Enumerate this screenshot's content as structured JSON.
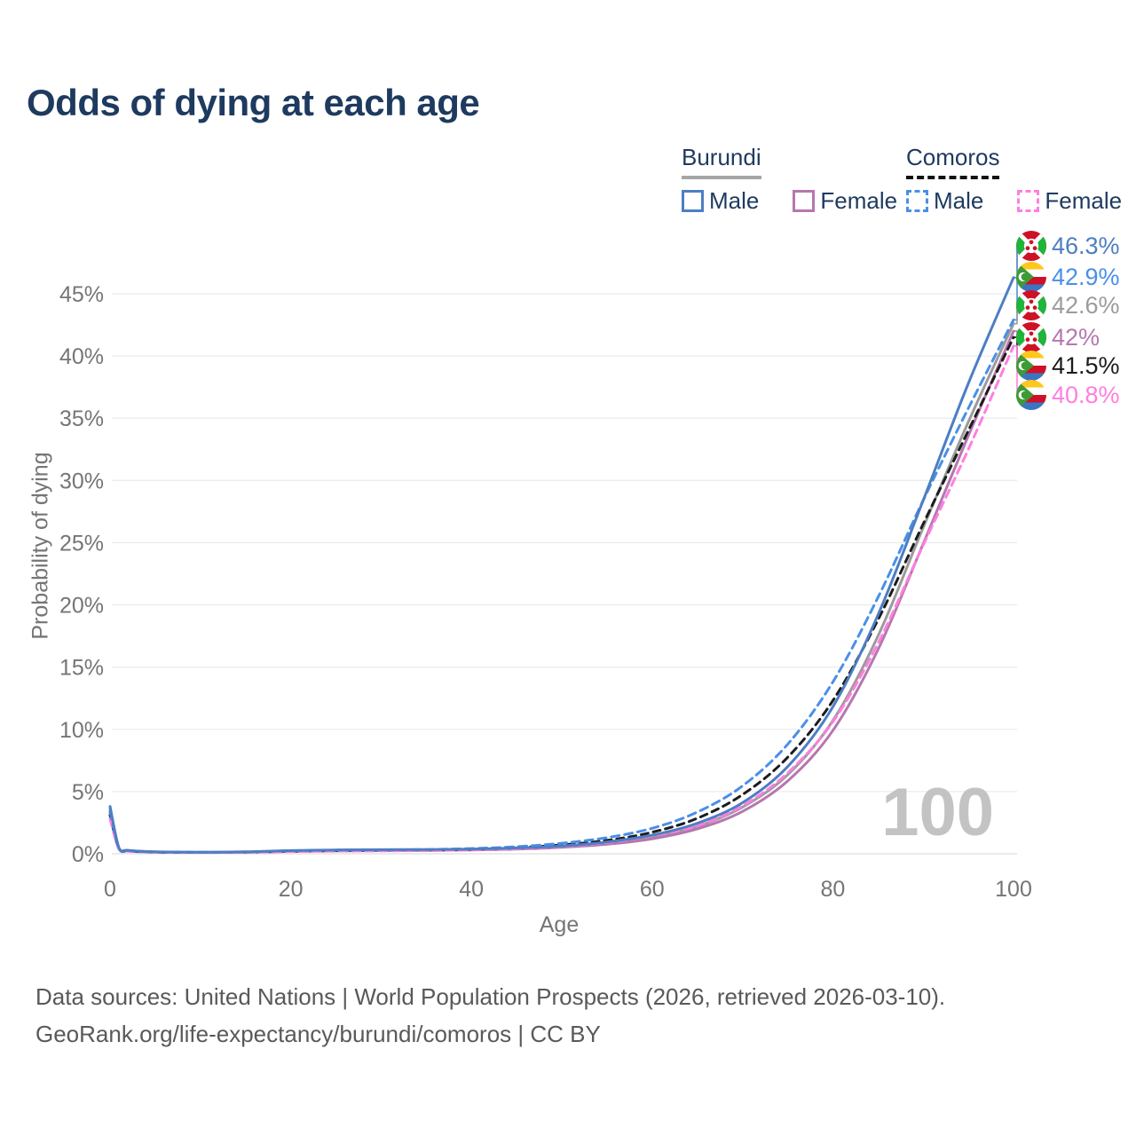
{
  "title": "Odds of dying at each age",
  "legend": {
    "groups": [
      {
        "label": "Burundi",
        "line_style": "solid",
        "items": [
          {
            "label": "Male",
            "color": "#4d7ec3"
          },
          {
            "label": "Female",
            "color": "#b577af"
          }
        ]
      },
      {
        "label": "Comoros",
        "line_style": "dashed",
        "items": [
          {
            "label": "Male",
            "color": "#4a8fe8"
          },
          {
            "label": "Female",
            "color": "#ff7ee0"
          }
        ]
      }
    ]
  },
  "end_labels": [
    {
      "value": "46.3%",
      "series": "burundi-male",
      "country": "burundi"
    },
    {
      "value": "42.9%",
      "series": "comoros-male",
      "country": "comoros"
    },
    {
      "value": "42.6%",
      "series": "burundi-both",
      "country": "burundi"
    },
    {
      "value": "42%",
      "series": "burundi-female",
      "country": "burundi"
    },
    {
      "value": "41.5%",
      "series": "comoros-both",
      "country": "comoros"
    },
    {
      "value": "40.8%",
      "series": "comoros-female",
      "country": "comoros"
    }
  ],
  "watermark": "100",
  "axes": {
    "x_label": "Age",
    "y_label": "Probability of dying",
    "x_ticks": [
      0,
      20,
      40,
      60,
      80,
      100
    ],
    "y_ticks": [
      {
        "v": 0,
        "label": "0%"
      },
      {
        "v": 5,
        "label": "5%"
      },
      {
        "v": 10,
        "label": "10%"
      },
      {
        "v": 15,
        "label": "15%"
      },
      {
        "v": 20,
        "label": "20%"
      },
      {
        "v": 25,
        "label": "25%"
      },
      {
        "v": 30,
        "label": "30%"
      },
      {
        "v": 35,
        "label": "35%"
      },
      {
        "v": 40,
        "label": "40%"
      },
      {
        "v": 45,
        "label": "45%"
      }
    ]
  },
  "footer": {
    "line1": "Data sources: United Nations | World Population Prospects (2026, retrieved 2026-03-10).",
    "line2": "GeoRank.org/life-expectancy/burundi/comoros | CC BY"
  },
  "colors": {
    "title": "#1e3a5f",
    "axis_text": "#757575",
    "gridline": "#ececec",
    "baseline": "#dedede",
    "watermark": "#c3c3c3",
    "footer": "#595959"
  },
  "chart_data": {
    "type": "line",
    "title": "Odds of dying at each age",
    "xlabel": "Age",
    "ylabel": "Probability of dying",
    "xlim": [
      0,
      100
    ],
    "ylim_pct": [
      0,
      48
    ],
    "grid": "horizontal-only",
    "legend_position": "top-right",
    "x_ages": [
      0,
      1,
      2,
      5,
      10,
      15,
      20,
      25,
      30,
      35,
      40,
      45,
      50,
      55,
      60,
      65,
      70,
      75,
      80,
      85,
      90,
      95,
      100
    ],
    "series": [
      {
        "id": "burundi-male",
        "name": "Burundi Male",
        "color": "#4d7ec3",
        "dash": null,
        "end_value_pct": 46.3,
        "values_pct": [
          3.8,
          0.45,
          0.28,
          0.16,
          0.13,
          0.16,
          0.26,
          0.31,
          0.33,
          0.34,
          0.38,
          0.47,
          0.63,
          0.95,
          1.5,
          2.45,
          4.1,
          7.0,
          11.8,
          19.2,
          28.4,
          37.8,
          46.3
        ]
      },
      {
        "id": "comoros-male",
        "name": "Comoros Male",
        "color": "#4a8fe8",
        "dash": "9 6",
        "end_value_pct": 42.9,
        "values_pct": [
          3.4,
          0.4,
          0.25,
          0.14,
          0.12,
          0.15,
          0.24,
          0.29,
          0.31,
          0.34,
          0.42,
          0.57,
          0.85,
          1.3,
          2.05,
          3.35,
          5.45,
          8.8,
          13.8,
          20.6,
          28.4,
          35.8,
          42.9
        ]
      },
      {
        "id": "burundi-both",
        "name": "Burundi Both sexes",
        "color": "#9b9b9b",
        "dash": null,
        "end_value_pct": 42.6,
        "values_pct": [
          3.6,
          0.43,
          0.26,
          0.15,
          0.12,
          0.14,
          0.22,
          0.27,
          0.29,
          0.31,
          0.34,
          0.43,
          0.57,
          0.85,
          1.35,
          2.2,
          3.75,
          6.35,
          10.7,
          17.5,
          26.2,
          34.7,
          42.6
        ]
      },
      {
        "id": "burundi-female",
        "name": "Burundi Female",
        "color": "#b577af",
        "dash": null,
        "end_value_pct": 42.0,
        "values_pct": [
          3.3,
          0.4,
          0.24,
          0.14,
          0.11,
          0.13,
          0.19,
          0.23,
          0.25,
          0.27,
          0.31,
          0.38,
          0.52,
          0.76,
          1.2,
          2.0,
          3.4,
          5.85,
          9.9,
          16.4,
          24.9,
          33.6,
          42.0
        ]
      },
      {
        "id": "comoros-both",
        "name": "Comoros Both sexes",
        "color": "#1c1c1c",
        "dash": "8 6",
        "end_value_pct": 41.5,
        "values_pct": [
          3.1,
          0.37,
          0.22,
          0.13,
          0.11,
          0.13,
          0.2,
          0.25,
          0.27,
          0.3,
          0.36,
          0.49,
          0.71,
          1.08,
          1.73,
          2.85,
          4.75,
          7.75,
          12.3,
          18.8,
          26.5,
          34.0,
          41.5
        ]
      },
      {
        "id": "comoros-female",
        "name": "Comoros Female",
        "color": "#ff7ee0",
        "dash": "9 6",
        "end_value_pct": 40.8,
        "values_pct": [
          2.8,
          0.34,
          0.2,
          0.12,
          0.1,
          0.12,
          0.17,
          0.21,
          0.23,
          0.26,
          0.31,
          0.41,
          0.59,
          0.9,
          1.45,
          2.25,
          3.85,
          6.5,
          10.6,
          16.9,
          24.8,
          32.5,
          40.8
        ]
      }
    ]
  }
}
